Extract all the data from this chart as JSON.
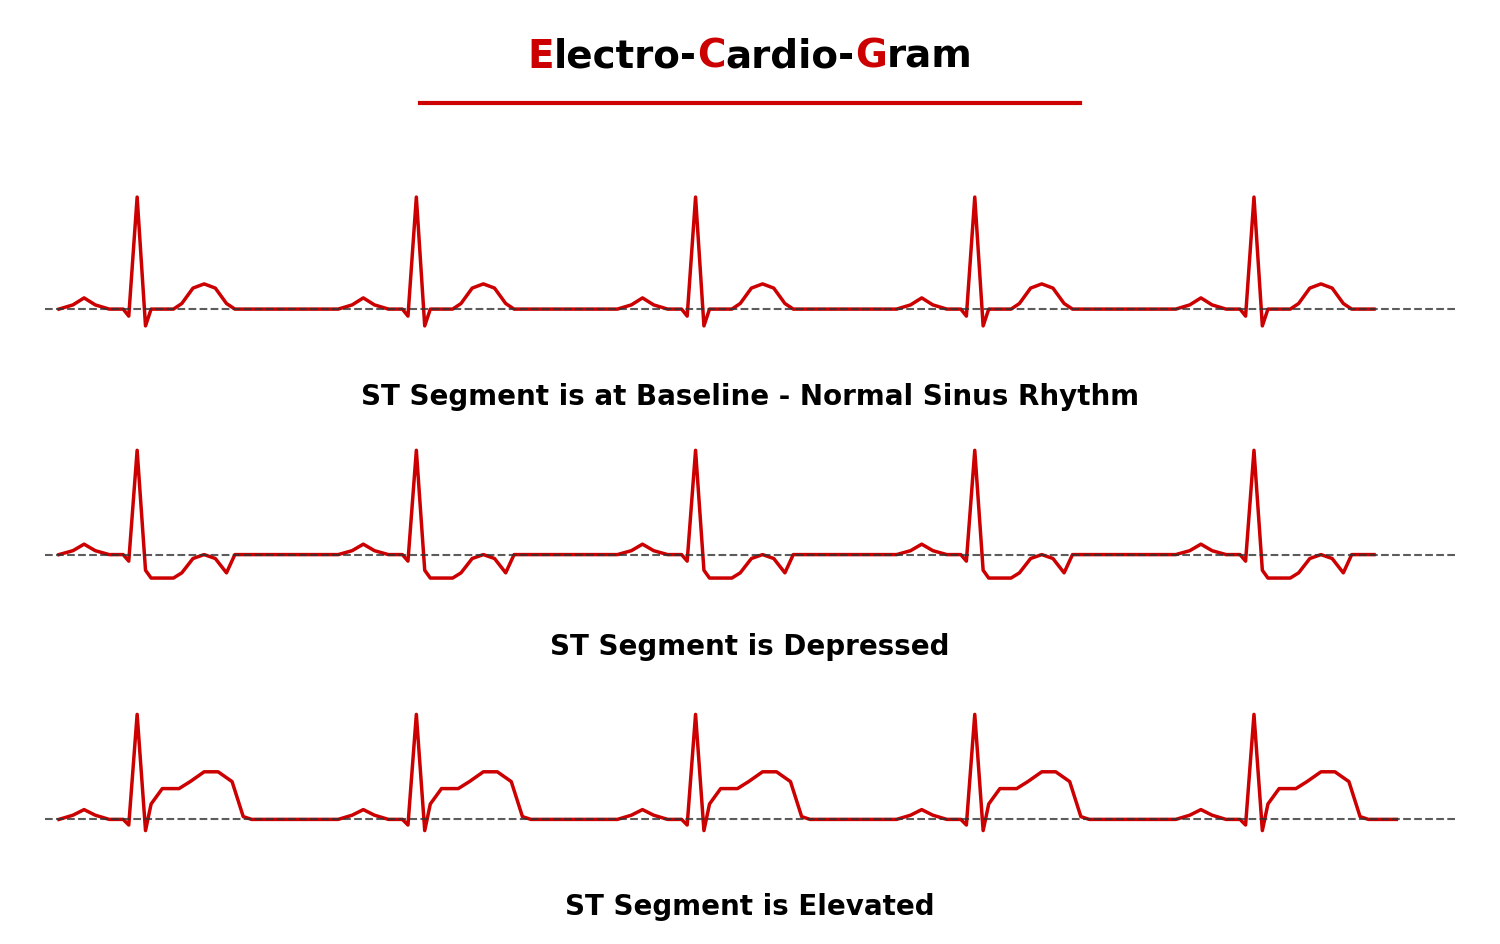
{
  "title_parts": [
    {
      "text": "E",
      "color": "#cc0000"
    },
    {
      "text": "lectro-",
      "color": "#000000"
    },
    {
      "text": "C",
      "color": "#cc0000"
    },
    {
      "text": "ardio-",
      "color": "#000000"
    },
    {
      "text": "G",
      "color": "#cc0000"
    },
    {
      "text": "ram",
      "color": "#000000"
    }
  ],
  "label1": "ST Segment is at Baseline - Normal Sinus Rhythm",
  "label2": "ST Segment is Depressed",
  "label3": "ST Segment is Elevated",
  "ecg_color": "#cc0000",
  "baseline_color": "#333333",
  "bg_color": "#ffffff",
  "title_fontsize": 28,
  "label_fontsize": 20,
  "line_width": 2.5
}
